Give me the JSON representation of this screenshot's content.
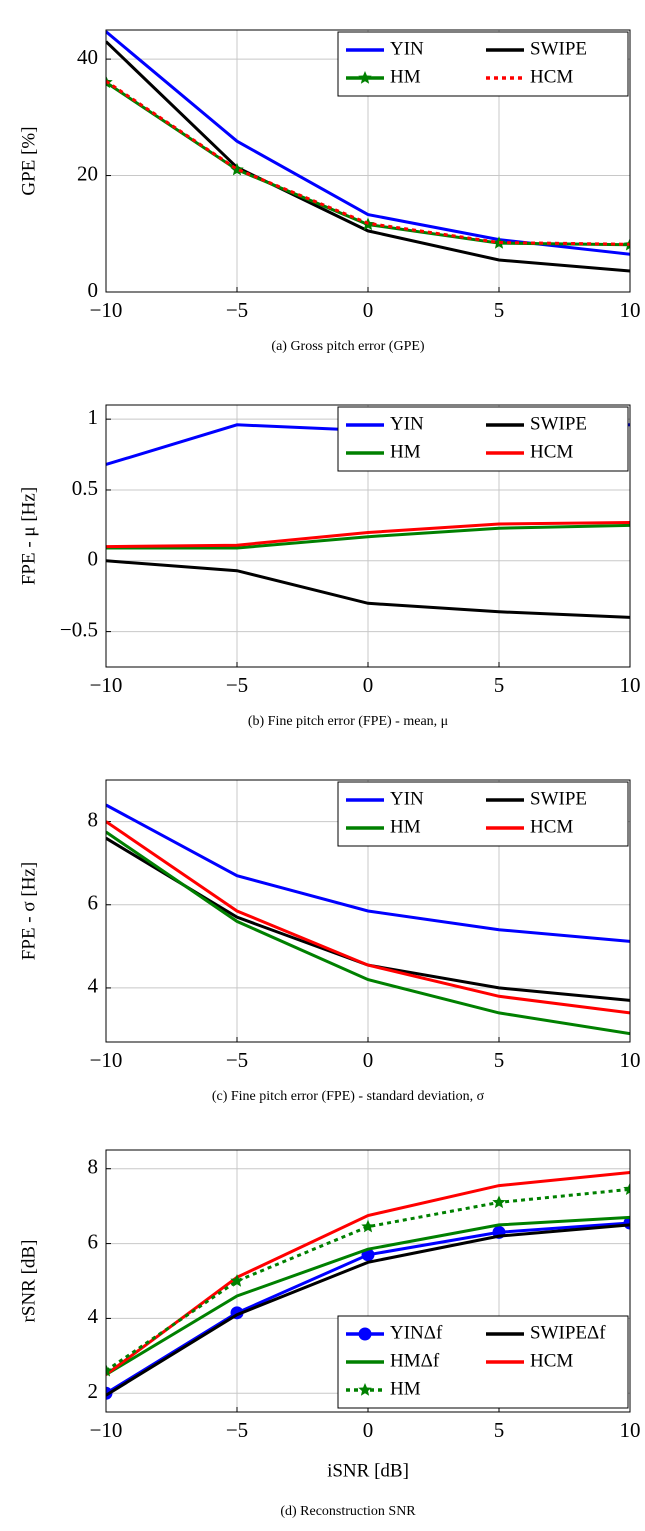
{
  "chart_data": [
    {
      "type": "line",
      "caption": "(a) Gross pitch error (GPE)",
      "ylabel": "GPE [%]",
      "x": [
        -10,
        -5,
        0,
        5,
        10
      ],
      "xlim": [
        -10,
        10
      ],
      "xticks": [
        {
          "value": -10,
          "label": "−10"
        },
        {
          "value": -5,
          "label": "−5"
        },
        0,
        5,
        10
      ],
      "ylim": [
        0,
        45
      ],
      "yticks": [
        0,
        20,
        40
      ],
      "grid": true,
      "legend": "upper right",
      "series": [
        {
          "name": "YIN",
          "color": "#0000ff",
          "values": [
            44.7,
            25.9,
            13.3,
            9,
            6.5
          ]
        },
        {
          "name": "SWIPE",
          "color": "#000000",
          "values": [
            43,
            21.4,
            10.5,
            5.5,
            3.6
          ]
        },
        {
          "name": "HM",
          "color": "#008000",
          "marker": "star",
          "values": [
            36,
            21,
            11.6,
            8.4,
            8.1
          ]
        },
        {
          "name": "HCM",
          "color": "#ff0000",
          "dash": true,
          "values": [
            36.2,
            21.1,
            11.8,
            8.5,
            8.2
          ]
        }
      ]
    },
    {
      "type": "line",
      "caption": "(b) Fine pitch error (FPE) - mean, μ",
      "ylabel": "FPE - μ [Hz]",
      "x": [
        -10,
        -5,
        0,
        5,
        10
      ],
      "xlim": [
        -10,
        10
      ],
      "xticks": [
        {
          "value": -10,
          "label": "−10"
        },
        {
          "value": -5,
          "label": "−5"
        },
        0,
        5,
        10
      ],
      "ylim": [
        -0.75,
        1.1
      ],
      "yticks": [
        {
          "value": -0.5,
          "label": "−0.5"
        },
        0,
        0.5,
        1
      ],
      "grid": true,
      "legend": "upper right",
      "series": [
        {
          "name": "YIN",
          "color": "#0000ff",
          "values": [
            0.68,
            0.96,
            0.92,
            0.94,
            0.96
          ]
        },
        {
          "name": "SWIPE",
          "color": "#000000",
          "values": [
            0,
            -0.07,
            -0.3,
            -0.36,
            -0.4
          ]
        },
        {
          "name": "HM",
          "color": "#008000",
          "values": [
            0.09,
            0.09,
            0.17,
            0.23,
            0.25
          ]
        },
        {
          "name": "HCM",
          "color": "#ff0000",
          "values": [
            0.1,
            0.11,
            0.2,
            0.26,
            0.27
          ]
        }
      ]
    },
    {
      "type": "line",
      "caption": "(c) Fine pitch error (FPE) - standard deviation, σ",
      "ylabel": "FPE - σ [Hz]",
      "x": [
        -10,
        -5,
        0,
        5,
        10
      ],
      "xlim": [
        -10,
        10
      ],
      "xticks": [
        {
          "value": -10,
          "label": "−10"
        },
        {
          "value": -5,
          "label": "−5"
        },
        0,
        5,
        10
      ],
      "ylim": [
        2.7,
        9
      ],
      "yticks": [
        4,
        6,
        8
      ],
      "grid": true,
      "legend": "upper right",
      "series": [
        {
          "name": "YIN",
          "color": "#0000ff",
          "values": [
            8.4,
            6.7,
            5.85,
            5.4,
            5.12
          ]
        },
        {
          "name": "SWIPE",
          "color": "#000000",
          "values": [
            7.6,
            5.7,
            4.55,
            4.0,
            3.7
          ]
        },
        {
          "name": "HM",
          "color": "#008000",
          "values": [
            7.75,
            5.6,
            4.2,
            3.4,
            2.9
          ]
        },
        {
          "name": "HCM",
          "color": "#ff0000",
          "values": [
            8.0,
            5.85,
            4.55,
            3.8,
            3.4
          ]
        }
      ]
    },
    {
      "type": "line",
      "caption": "(d) Reconstruction SNR",
      "ylabel": "rSNR [dB]",
      "xlabel": "iSNR [dB]",
      "x": [
        -10,
        -5,
        0,
        5,
        10
      ],
      "xlim": [
        -10,
        10
      ],
      "xticks": [
        {
          "value": -10,
          "label": "−10"
        },
        {
          "value": -5,
          "label": "−5"
        },
        0,
        5,
        10
      ],
      "ylim": [
        1.5,
        8.5
      ],
      "yticks": [
        2,
        4,
        6,
        8
      ],
      "grid": true,
      "legend": "lower right",
      "series": [
        {
          "name": "YINΔf",
          "color": "#0000ff",
          "marker": "circle",
          "values": [
            2,
            4.15,
            5.7,
            6.3,
            6.55
          ]
        },
        {
          "name": "SWIPEΔf",
          "color": "#000000",
          "values": [
            1.95,
            4.1,
            5.5,
            6.2,
            6.5
          ]
        },
        {
          "name": "HMΔf",
          "color": "#008000",
          "values": [
            2.5,
            4.6,
            5.85,
            6.5,
            6.7
          ]
        },
        {
          "name": "HCM",
          "color": "#ff0000",
          "values": [
            2.5,
            5.1,
            6.75,
            7.55,
            7.9
          ]
        },
        {
          "name": "HM",
          "color": "#008000",
          "dash": true,
          "marker": "star",
          "values": [
            2.6,
            5.0,
            6.45,
            7.1,
            7.45
          ]
        }
      ]
    }
  ]
}
